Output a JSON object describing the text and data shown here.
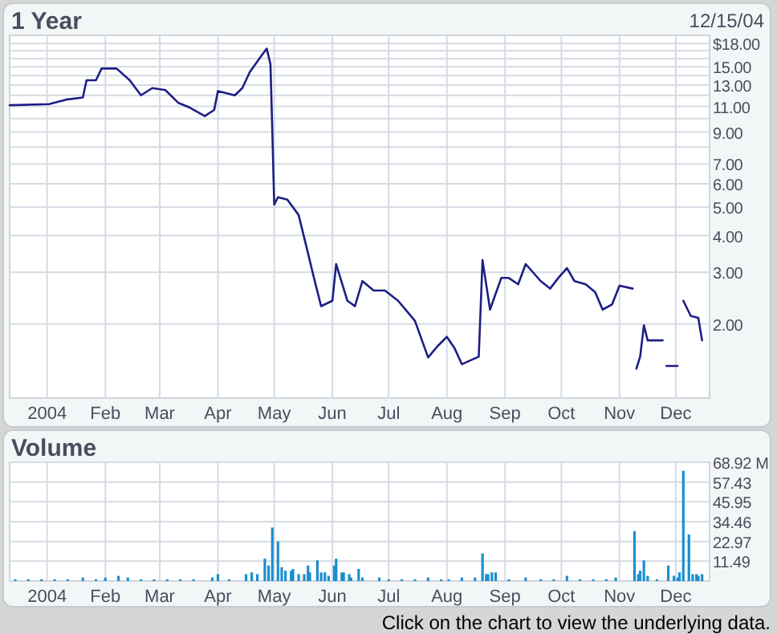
{
  "chart_data": [
    {
      "type": "line",
      "title": "1 Year",
      "subtitle": "12/15/04",
      "x": [
        "2003-12-12",
        "2004-01-02",
        "2004-01-11",
        "2004-01-20",
        "2004-01-22",
        "2004-01-27",
        "2004-01-30",
        "2004-02-07",
        "2004-02-14",
        "2004-02-20",
        "2004-02-26",
        "2004-03-04",
        "2004-03-11",
        "2004-03-17",
        "2004-03-25",
        "2004-03-30",
        "2004-04-01",
        "2004-04-10",
        "2004-04-14",
        "2004-04-18",
        "2004-04-24",
        "2004-04-27",
        "2004-04-29",
        "2004-04-30",
        "2004-05-01",
        "2004-05-03",
        "2004-05-08",
        "2004-05-14",
        "2004-05-18",
        "2004-05-22",
        "2004-05-26",
        "2004-06-01",
        "2004-06-03",
        "2004-06-09",
        "2004-06-13",
        "2004-06-17",
        "2004-06-23",
        "2004-06-29",
        "2004-07-06",
        "2004-07-11",
        "2004-07-15",
        "2004-07-22",
        "2004-07-27",
        "2004-08-01",
        "2004-08-05",
        "2004-08-09",
        "2004-08-18",
        "2004-08-20",
        "2004-08-24",
        "2004-08-30",
        "2004-09-03",
        "2004-09-08",
        "2004-09-12",
        "2004-09-20",
        "2004-09-25",
        "2004-09-30",
        "2004-10-04",
        "2004-10-08",
        "2004-10-14",
        "2004-10-19",
        "2004-10-23",
        "2004-10-28",
        "2004-11-01",
        "2004-11-08",
        "2004-11-09",
        "2004-11-10",
        "2004-11-12",
        "2004-11-14",
        "2004-11-16",
        "2004-11-24",
        "2004-11-25",
        "2004-11-26",
        "2004-12-02",
        "2004-12-03",
        "2004-12-05",
        "2004-12-09",
        "2004-12-13",
        "2004-12-15"
      ],
      "series": [
        {
          "color": "#1c1f85",
          "values": [
            11.1,
            11.2,
            11.6,
            11.8,
            13.5,
            13.5,
            14.8,
            14.8,
            13.5,
            12,
            12.7,
            12.5,
            11.3,
            10.9,
            10.2,
            10.7,
            12.4,
            12,
            12.7,
            14.4,
            16.3,
            17.3,
            15.3,
            9.0,
            5.1,
            5.4,
            5.3,
            4.7,
            3.7,
            2.9,
            2.3,
            2.4,
            3.2,
            2.4,
            2.3,
            2.8,
            2.6,
            2.6,
            2.4,
            2.2,
            2.05,
            1.54,
            1.68,
            1.81,
            1.66,
            1.46,
            1.55,
            3.3,
            2.24,
            2.87,
            2.87,
            2.73,
            3.2,
            2.8,
            2.64,
            2.9,
            3.1,
            2.8,
            2.73,
            2.57,
            2.24,
            2.33,
            2.7,
            2.64,
            null,
            1.41,
            1.55,
            1.98,
            1.76,
            1.76,
            null,
            1.44,
            1.44,
            null,
            2.4,
            2.13,
            2.1,
            1.76
          ]
        }
      ],
      "xlim": [
        "2003-12-12",
        "2004-12-19"
      ],
      "xticks": [
        {
          "value": "2004-01-01",
          "label": "2004"
        },
        {
          "value": "2004-02-01",
          "label": "Feb"
        },
        {
          "value": "2004-03-01",
          "label": "Mar"
        },
        {
          "value": "2004-04-01",
          "label": "Apr"
        },
        {
          "value": "2004-05-01",
          "label": "May"
        },
        {
          "value": "2004-06-01",
          "label": "Jun"
        },
        {
          "value": "2004-07-01",
          "label": "Jul"
        },
        {
          "value": "2004-08-01",
          "label": "Aug"
        },
        {
          "value": "2004-09-01",
          "label": "Sep"
        },
        {
          "value": "2004-10-01",
          "label": "Oct"
        },
        {
          "value": "2004-11-01",
          "label": "Nov"
        },
        {
          "value": "2004-12-01",
          "label": "Dec"
        }
      ],
      "ylim": [
        1.12,
        19.2
      ],
      "yticks": [
        {
          "value": 2,
          "label": "2.00"
        },
        {
          "value": 3,
          "label": "3.00"
        },
        {
          "value": 4,
          "label": "4.00"
        },
        {
          "value": 5,
          "label": "5.00"
        },
        {
          "value": 6,
          "label": "6.00"
        },
        {
          "value": 7,
          "label": "7.00"
        },
        {
          "value": 8,
          "label": null
        },
        {
          "value": 9,
          "label": "9.00"
        },
        {
          "value": 10,
          "label": null
        },
        {
          "value": 11,
          "label": "11.00"
        },
        {
          "value": 12,
          "label": null
        },
        {
          "value": 13,
          "label": "13.00"
        },
        {
          "value": 14,
          "label": null
        },
        {
          "value": 15,
          "label": "15.00"
        },
        {
          "value": 16,
          "label": null
        },
        {
          "value": 17,
          "label": null
        },
        {
          "value": 18,
          "label": "$18.00"
        }
      ],
      "log": true,
      "grid": true
    },
    {
      "type": "bar",
      "title": "Volume",
      "color": "#1a8fd0",
      "x": [
        "2003-12-15",
        "2003-12-22",
        "2003-12-29",
        "2004-01-05",
        "2004-01-12",
        "2004-01-20",
        "2004-01-27",
        "2004-02-01",
        "2004-02-08",
        "2004-02-13",
        "2004-02-20",
        "2004-02-27",
        "2004-03-05",
        "2004-03-12",
        "2004-03-19",
        "2004-03-29",
        "2004-04-01",
        "2004-04-07",
        "2004-04-16",
        "2004-04-19",
        "2004-04-22",
        "2004-04-26",
        "2004-04-28",
        "2004-04-30",
        "2004-05-03",
        "2004-05-05",
        "2004-05-07",
        "2004-05-10",
        "2004-05-11",
        "2004-05-14",
        "2004-05-17",
        "2004-05-19",
        "2004-05-20",
        "2004-05-24",
        "2004-05-26",
        "2004-05-28",
        "2004-05-30",
        "2004-06-02",
        "2004-06-03",
        "2004-06-06",
        "2004-06-07",
        "2004-06-10",
        "2004-06-11",
        "2004-06-15",
        "2004-06-17",
        "2004-06-26",
        "2004-07-01",
        "2004-07-08",
        "2004-07-15",
        "2004-07-22",
        "2004-07-29",
        "2004-08-02",
        "2004-08-09",
        "2004-08-16",
        "2004-08-20",
        "2004-08-22",
        "2004-08-23",
        "2004-08-25",
        "2004-08-27",
        "2004-09-03",
        "2004-09-12",
        "2004-09-20",
        "2004-09-27",
        "2004-10-04",
        "2004-10-11",
        "2004-10-18",
        "2004-10-25",
        "2004-10-30",
        "2004-11-09",
        "2004-11-11",
        "2004-11-12",
        "2004-11-14",
        "2004-11-16",
        "2004-11-21",
        "2004-11-27",
        "2004-11-30",
        "2004-12-02",
        "2004-12-03",
        "2004-12-05",
        "2004-12-08",
        "2004-12-10",
        "2004-12-12",
        "2004-12-13",
        "2004-12-15"
      ],
      "values": [
        1,
        1,
        1,
        1,
        1,
        2,
        1,
        2,
        3,
        2,
        1,
        1,
        1,
        1,
        1,
        2,
        4,
        1,
        4,
        5,
        4,
        13,
        9,
        31,
        23,
        8,
        6,
        6,
        7,
        4,
        4,
        9,
        5,
        12,
        5,
        5,
        3,
        9,
        13,
        5,
        5,
        4,
        2,
        7,
        2,
        2,
        1,
        1,
        1,
        2,
        1,
        1,
        2,
        2,
        16,
        4,
        4,
        5,
        5,
        1,
        2,
        1,
        1,
        3,
        1,
        1,
        1,
        2,
        29,
        4,
        6,
        12,
        3,
        1,
        9,
        3,
        2,
        5,
        64,
        27,
        4,
        4,
        3,
        4
      ],
      "xlim": [
        "2003-12-12",
        "2004-12-19"
      ],
      "xticks": [
        {
          "value": "2004-01-01",
          "label": "2004"
        },
        {
          "value": "2004-02-01",
          "label": "Feb"
        },
        {
          "value": "2004-03-01",
          "label": "Mar"
        },
        {
          "value": "2004-04-01",
          "label": "Apr"
        },
        {
          "value": "2004-05-01",
          "label": "May"
        },
        {
          "value": "2004-06-01",
          "label": "Jun"
        },
        {
          "value": "2004-07-01",
          "label": "Jul"
        },
        {
          "value": "2004-08-01",
          "label": "Aug"
        },
        {
          "value": "2004-09-01",
          "label": "Sep"
        },
        {
          "value": "2004-10-01",
          "label": "Oct"
        },
        {
          "value": "2004-11-01",
          "label": "Nov"
        },
        {
          "value": "2004-12-01",
          "label": "Dec"
        }
      ],
      "ylim": [
        0,
        68.92
      ],
      "yticks": [
        11.49,
        22.97,
        34.46,
        45.95,
        57.43,
        {
          "value": 68.92,
          "label": "68.92 M"
        }
      ],
      "grid": true,
      "annotations": [
        "Click on the chart to view the underlying data."
      ]
    }
  ]
}
